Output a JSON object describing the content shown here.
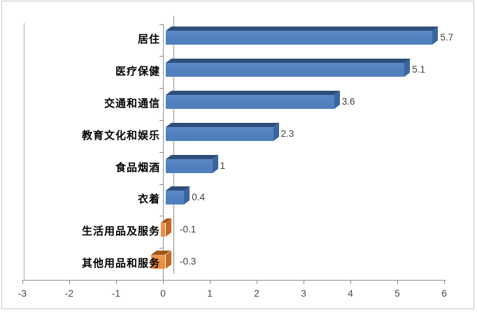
{
  "chart_data": {
    "type": "bar",
    "orientation": "horizontal",
    "style": "3d",
    "title": "",
    "xlabel": "",
    "ylabel": "",
    "categories": [
      "居住",
      "医疗保健",
      "交通和通信",
      "教育文化和娱乐",
      "食品烟酒",
      "衣着",
      "生活用品及服务",
      "其他用品和服务"
    ],
    "values": [
      5.7,
      5.1,
      3.6,
      2.3,
      1,
      0.4,
      -0.1,
      -0.3
    ],
    "data_labels": [
      "5.7",
      "5.1",
      "3.6",
      "2.3",
      "1",
      "0.4",
      "-0.1",
      "-0.3"
    ],
    "xlim": [
      -3,
      6
    ],
    "x_ticks": [
      -3,
      -2,
      -1,
      0,
      1,
      2,
      3,
      4,
      5,
      6
    ],
    "x_tick_labels": [
      "-3",
      "-2",
      "-1",
      "0",
      "1",
      "2",
      "3",
      "4",
      "5",
      "6"
    ],
    "grid": "zero-line-only",
    "legend": "none",
    "colors": {
      "positive_bar": "#4f80bd",
      "positive_bar_light": "#5d89c5",
      "positive_top": "#2e4f7a",
      "positive_side": "#3a66a0",
      "negative_bar": "#ed8b3e",
      "negative_bar_light": "#f29a55",
      "negative_top": "#9e591e",
      "negative_side": "#c56a24",
      "axis_line": "#8f8f8f",
      "wall_line": "#ababab",
      "zero_gridline": "#8f8f8f",
      "tick_label": "#4d4d4d",
      "data_label": "#3f3f3f",
      "category_label": "#000000",
      "border": "#c9c9c9",
      "background": "#ffffff"
    }
  }
}
